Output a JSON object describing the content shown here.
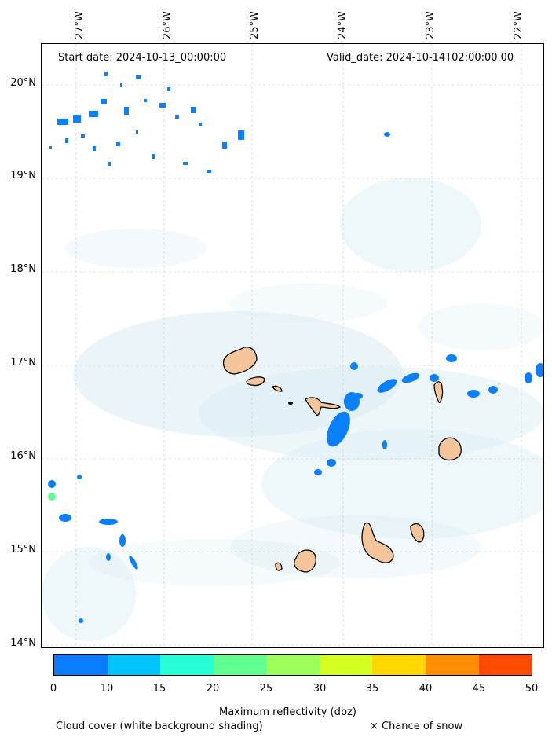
{
  "map": {
    "start_date": "Start date: 2024-10-13_00:00:00",
    "valid_date": "Valid_date: 2024-10-14T02:00:00.00",
    "lon_labels": [
      "27°W",
      "26°W",
      "25°W",
      "24°W",
      "23°W",
      "22°W"
    ],
    "lat_labels": [
      "20°N",
      "19°N",
      "18°N",
      "17°N",
      "16°N",
      "15°N",
      "14°N"
    ],
    "island_fill": "#f4c49a",
    "cloud_color": "#cfe7f0",
    "echo_color": "#0a80ff"
  },
  "colorbar": {
    "title": "Maximum reflectivity (dbz)",
    "ticks": [
      "0",
      "10",
      "15",
      "20",
      "25",
      "30",
      "35",
      "40",
      "45",
      "50"
    ],
    "colors": [
      "#0a7cff",
      "#00c4ff",
      "#25ffd5",
      "#60ff90",
      "#9cff5a",
      "#d5ff22",
      "#ffd800",
      "#ff8e00",
      "#ff4a00"
    ]
  },
  "footer": {
    "cloud_note": "Cloud cover (white background shading)",
    "snow_note": "× Chance of snow"
  }
}
